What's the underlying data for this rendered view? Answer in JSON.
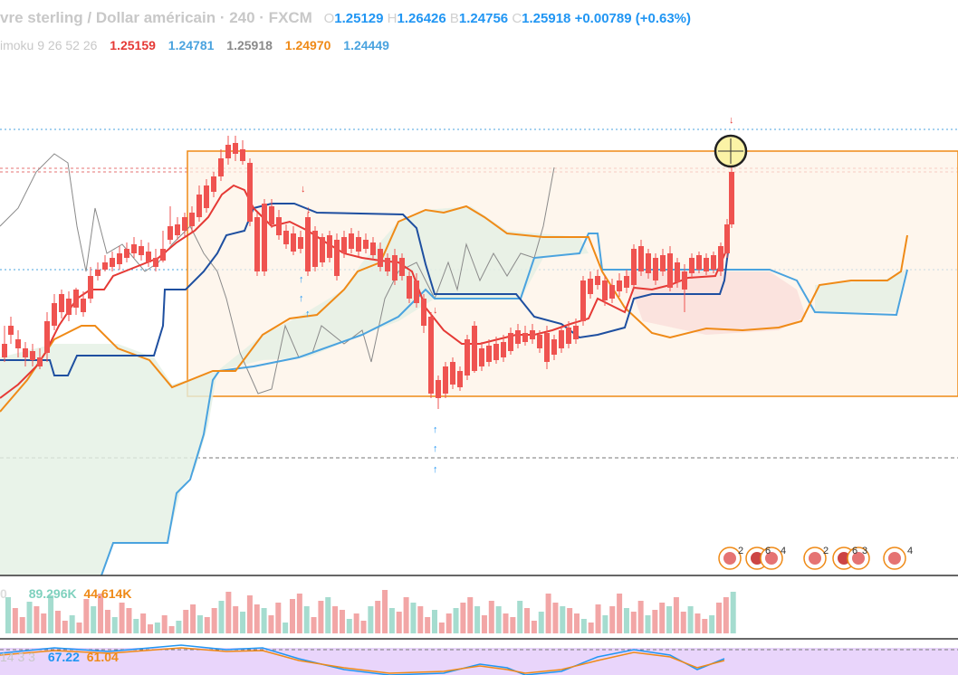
{
  "header": {
    "symbol_title": "vre sterling / Dollar américain · 240 · FXCM",
    "open_label": "O",
    "open": "1.25129",
    "high_label": "H",
    "high": "1.26426",
    "low_label": "B",
    "low": "1.24756",
    "close_label": "C",
    "close": "1.25918",
    "change": "+0.00789 (+0.63%)"
  },
  "ichimoku": {
    "name": "imoku 9 26 52 26",
    "tenkan": "1.25159",
    "kijun": "1.24781",
    "chikou": "1.25918",
    "span_a": "1.24970",
    "span_b": "1.24449",
    "colors": {
      "tenkan": "#e53935",
      "kijun": "#1e4fa0",
      "chikou": "#8a8a8a",
      "span_a": "#ef8a17",
      "span_b": "#4aa3df"
    }
  },
  "volume": {
    "prefix": "0",
    "value_a": "89.296K",
    "value_b": "44.614K",
    "colors": {
      "a": "#7fd1be",
      "b": "#ef8a17"
    }
  },
  "rsi": {
    "prefix": "14 3 3",
    "value_k": "67.22",
    "value_d": "61.04",
    "colors": {
      "k": "#2196f3",
      "d": "#ef8a17"
    }
  },
  "events": {
    "group1": [
      "2",
      "6",
      "4"
    ],
    "group2": [
      "2",
      "6",
      "3",
      "4"
    ]
  }
}
